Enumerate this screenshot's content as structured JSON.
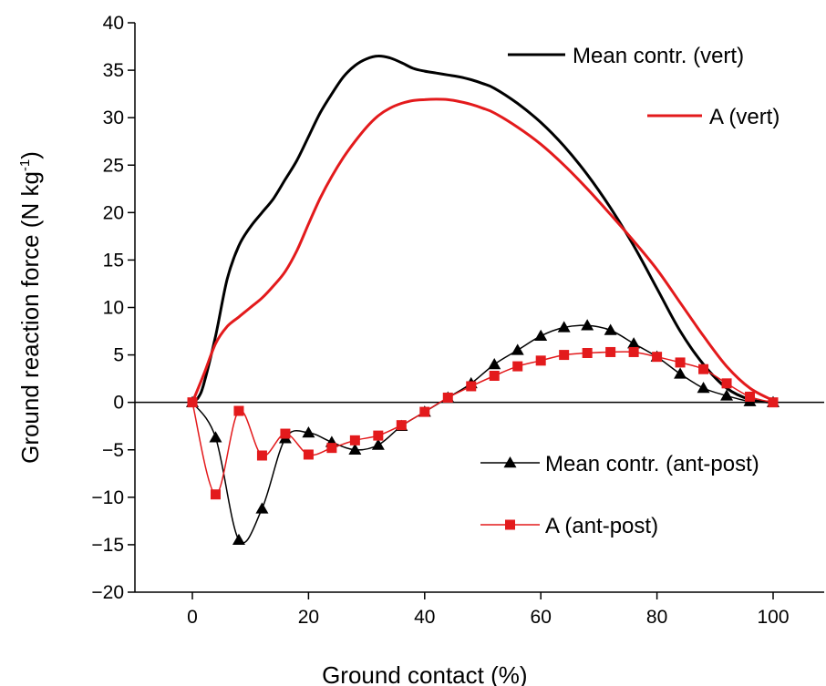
{
  "chart_data": {
    "type": "line",
    "xlabel": "Ground contact (%)",
    "ylabel": "Ground reaction force (N kg",
    "ylabel_sup": "-1",
    "ylabel_close": ")",
    "xlim": [
      -10,
      105
    ],
    "ylim": [
      -20,
      40
    ],
    "xticks": [
      0,
      20,
      40,
      60,
      80,
      100
    ],
    "yticks": [
      -20,
      -15,
      -10,
      -5,
      0,
      5,
      10,
      15,
      20,
      25,
      30,
      35,
      40
    ],
    "xtick_labels": [
      "0",
      "20",
      "40",
      "60",
      "80",
      "100"
    ],
    "ytick_labels": [
      "−20",
      "−15",
      "−10",
      "−5",
      "0",
      "5",
      "10",
      "15",
      "20",
      "25",
      "30",
      "35",
      "40"
    ],
    "zero_line": true,
    "grid": false,
    "series": [
      {
        "name": "Mean contr. (vert)",
        "color": "#000000",
        "marker": "none",
        "x": [
          0,
          1,
          2,
          4,
          6,
          8,
          10,
          12,
          14,
          16,
          18,
          20,
          22,
          24,
          26,
          28,
          30,
          32,
          34,
          36,
          38,
          40,
          42,
          44,
          46,
          48,
          50,
          52,
          56,
          60,
          64,
          68,
          72,
          76,
          80,
          84,
          88,
          92,
          96,
          100
        ],
        "y": [
          0,
          0.5,
          2,
          7,
          13,
          16.5,
          18.5,
          20,
          21.5,
          23.5,
          25.5,
          28,
          30.5,
          32.5,
          34.3,
          35.5,
          36.2,
          36.5,
          36.3,
          35.8,
          35.2,
          34.9,
          34.7,
          34.5,
          34.3,
          34,
          33.6,
          33.1,
          31.5,
          29.5,
          27,
          24,
          20.5,
          16.5,
          12,
          7.5,
          4,
          1.5,
          0.3,
          0
        ]
      },
      {
        "name": "A (vert)",
        "color": "#e31a1c",
        "marker": "none",
        "x": [
          0,
          2,
          4,
          6,
          8,
          10,
          12,
          14,
          16,
          18,
          20,
          22,
          24,
          26,
          28,
          30,
          32,
          34,
          36,
          38,
          40,
          42,
          44,
          46,
          48,
          50,
          52,
          56,
          60,
          64,
          68,
          72,
          76,
          80,
          84,
          88,
          92,
          96,
          100
        ],
        "y": [
          0,
          3,
          6.2,
          8,
          9,
          10,
          11,
          12.3,
          13.8,
          16,
          18.8,
          21.5,
          23.8,
          25.8,
          27.5,
          29,
          30.2,
          31,
          31.5,
          31.8,
          31.9,
          31.95,
          31.9,
          31.7,
          31.4,
          31,
          30.5,
          29,
          27.2,
          25,
          22.5,
          19.8,
          17,
          14,
          10.5,
          7,
          3.8,
          1.5,
          0.2
        ]
      },
      {
        "name": "Mean contr. (ant-post)",
        "color": "#000000",
        "marker": "triangle",
        "x": [
          0,
          4,
          8,
          12,
          16,
          20,
          24,
          28,
          32,
          36,
          40,
          44,
          48,
          52,
          56,
          60,
          64,
          68,
          72,
          76,
          80,
          84,
          88,
          92,
          96,
          100
        ],
        "y": [
          0,
          -3.7,
          -14.5,
          -11.2,
          -3.8,
          -3.2,
          -4.2,
          -5,
          -4.5,
          -2.5,
          -1,
          0.5,
          2,
          4,
          5.5,
          7,
          7.9,
          8.1,
          7.6,
          6.2,
          4.8,
          3,
          1.5,
          0.7,
          0.1,
          0
        ]
      },
      {
        "name": "A (ant-post)",
        "color": "#e31a1c",
        "marker": "square",
        "x": [
          0,
          4,
          8,
          12,
          16,
          20,
          24,
          28,
          32,
          36,
          40,
          44,
          48,
          52,
          56,
          60,
          64,
          68,
          72,
          76,
          80,
          84,
          88,
          92,
          96,
          100
        ],
        "y": [
          0,
          -9.7,
          -0.9,
          -5.6,
          -3.3,
          -5.5,
          -4.8,
          -4,
          -3.5,
          -2.4,
          -1,
          0.5,
          1.7,
          2.8,
          3.8,
          4.4,
          5,
          5.2,
          5.3,
          5.3,
          4.8,
          4.2,
          3.5,
          2,
          0.6,
          0
        ]
      }
    ],
    "legend": [
      {
        "label": "Mean contr. (vert)",
        "color": "#000000",
        "marker": "none"
      },
      {
        "label": "A (vert)",
        "color": "#e31a1c",
        "marker": "none"
      },
      {
        "label": "Mean contr. (ant-post)",
        "color": "#000000",
        "marker": "triangle"
      },
      {
        "label": "A (ant-post)",
        "color": "#e31a1c",
        "marker": "square"
      }
    ]
  }
}
